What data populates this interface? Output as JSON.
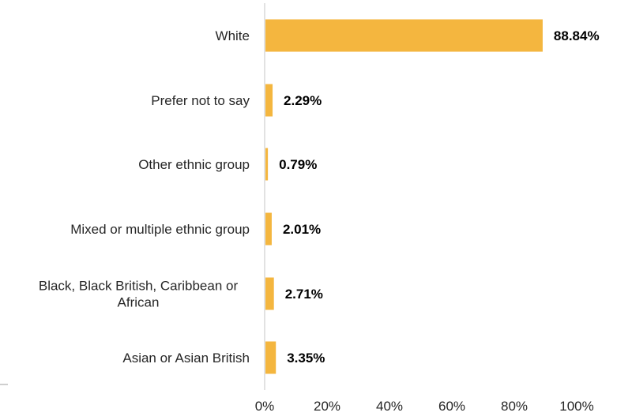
{
  "chart_data": {
    "type": "bar",
    "orientation": "horizontal",
    "categories": [
      [
        "White"
      ],
      [
        "Prefer not to say"
      ],
      [
        "Other ethnic group"
      ],
      [
        "Mixed or multiple ethnic group"
      ],
      [
        "Black, Black British, Caribbean or",
        "African"
      ],
      [
        "Asian or Asian British"
      ]
    ],
    "values": [
      88.84,
      2.29,
      0.79,
      2.01,
      2.71,
      3.35
    ],
    "value_labels": [
      "88.84%",
      "2.29%",
      "0.79%",
      "2.01%",
      "2.71%",
      "3.35%"
    ],
    "x_ticks": [
      "0%",
      "20%",
      "40%",
      "60%",
      "80%",
      "100%"
    ],
    "x_tick_values": [
      0,
      20,
      40,
      60,
      80,
      100
    ],
    "xlim": [
      0,
      100
    ],
    "grid": false,
    "legend": "none",
    "bar_color": "#F4B63F",
    "axis_color": "#D9D9D9"
  }
}
